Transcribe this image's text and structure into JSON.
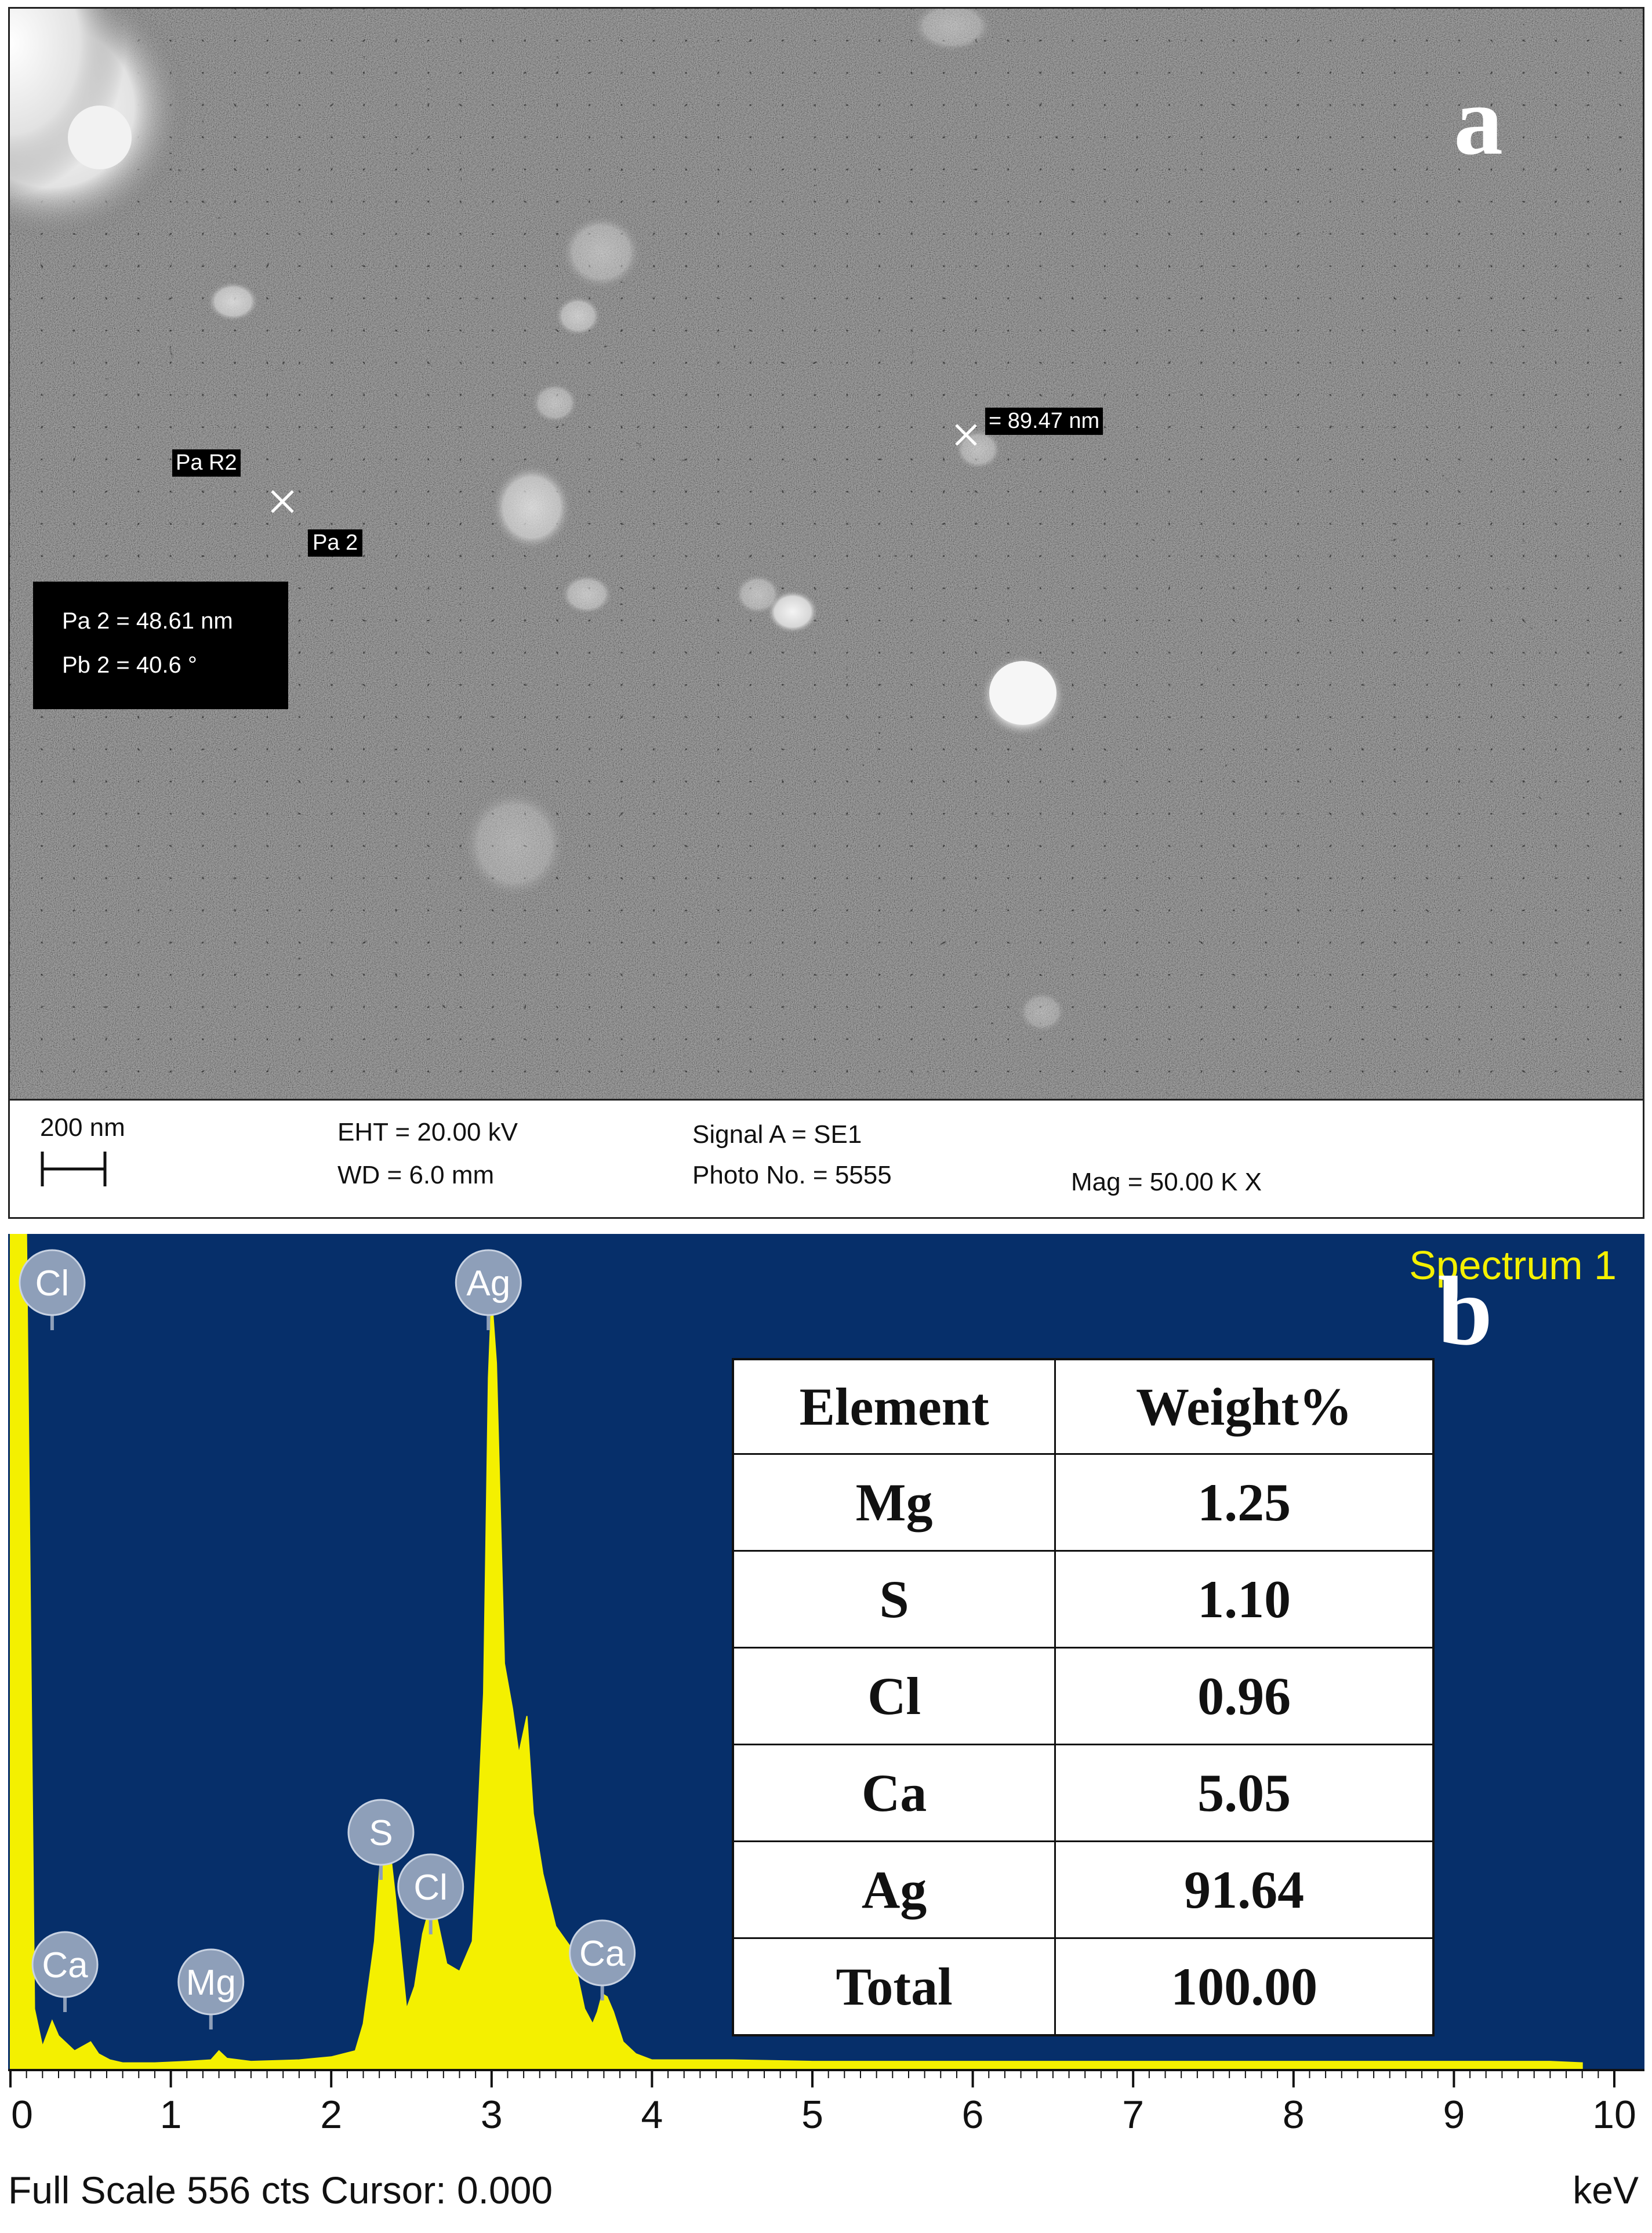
{
  "panel_a": {
    "letter": "a",
    "measure_label_r2": "Pa R2",
    "measure_label_pa2": "Pa 2",
    "measure_particle": "= 89.47 nm",
    "measure_box": {
      "line1": "Pa 2 = 48.61 nm",
      "line2": "Pb 2 =  40.6 °"
    },
    "info_bar": {
      "scale_label": "200 nm",
      "eht": "EHT = 20.00 kV",
      "wd": "WD =  6.0 mm",
      "signal": "Signal A = SE1",
      "photo": "Photo No. = 5555",
      "mag": "Mag =  50.00 K X"
    }
  },
  "panel_b": {
    "letter": "b",
    "spectrum_label": "Spectrum 1",
    "footer_left": "Full Scale 556 cts Cursor: 0.000",
    "footer_right": "keV",
    "table": {
      "headers": [
        "Element",
        "Weight%"
      ],
      "rows": [
        [
          "Mg",
          "1.25"
        ],
        [
          "S",
          "1.10"
        ],
        [
          "Cl",
          "0.96"
        ],
        [
          "Ca",
          "5.05"
        ],
        [
          "Ag",
          "91.64"
        ],
        [
          "Total",
          "100.00"
        ]
      ]
    }
  },
  "colors": {
    "eds_background": "#062f6a",
    "spectrum_fill": "#f4f000",
    "spectrum_label": "#f4f000",
    "peak_marker": "#8e9fb9"
  },
  "chart_data": {
    "type": "area",
    "title": "Spectrum 1",
    "xlabel": "keV",
    "ylabel": "",
    "xlim": [
      0,
      10
    ],
    "ylim": [
      0,
      556
    ],
    "x_ticks": [
      0,
      1,
      2,
      3,
      4,
      5,
      6,
      7,
      8,
      9,
      10
    ],
    "full_scale_counts": 556,
    "cursor": 0.0,
    "series": [
      {
        "x": [
          0.0,
          0.06,
          0.1,
          0.15,
          0.2,
          0.26,
          0.3,
          0.4,
          0.5,
          0.55,
          0.62,
          0.7,
          0.9,
          1.1,
          1.25,
          1.3,
          1.35,
          1.5,
          1.8,
          2.0,
          2.15,
          2.2,
          2.27,
          2.31,
          2.35,
          2.4,
          2.47,
          2.52,
          2.57,
          2.62,
          2.66,
          2.72,
          2.8,
          2.88,
          2.95,
          2.98,
          3.0,
          3.03,
          3.08,
          3.13,
          3.17,
          3.22,
          3.26,
          3.32,
          3.4,
          3.5,
          3.58,
          3.63,
          3.66,
          3.69,
          3.72,
          3.76,
          3.82,
          3.9,
          4.0,
          4.5,
          5.0,
          6.0,
          7.0,
          8.0,
          9.0,
          9.6,
          9.8
        ],
        "y": [
          556,
          556,
          556,
          40,
          15,
          32,
          22,
          12,
          18,
          10,
          6,
          4,
          4,
          5,
          6,
          12,
          7,
          5,
          6,
          8,
          12,
          30,
          85,
          145,
          162,
          115,
          40,
          55,
          90,
          110,
          100,
          70,
          65,
          85,
          250,
          460,
          515,
          470,
          270,
          240,
          210,
          235,
          170,
          130,
          95,
          80,
          40,
          30,
          38,
          50,
          48,
          38,
          18,
          10,
          6,
          6,
          5,
          5,
          5,
          5,
          5,
          5,
          4
        ]
      }
    ],
    "peak_labels": [
      {
        "element": "Cl",
        "energy": 0.26
      },
      {
        "element": "Ca",
        "energy": 0.34
      },
      {
        "element": "Mg",
        "energy": 1.25
      },
      {
        "element": "S",
        "energy": 2.31
      },
      {
        "element": "Cl",
        "energy": 2.62
      },
      {
        "element": "Ag",
        "energy": 2.98
      },
      {
        "element": "Ca",
        "energy": 3.69
      }
    ],
    "grid": false,
    "legend": "none"
  }
}
